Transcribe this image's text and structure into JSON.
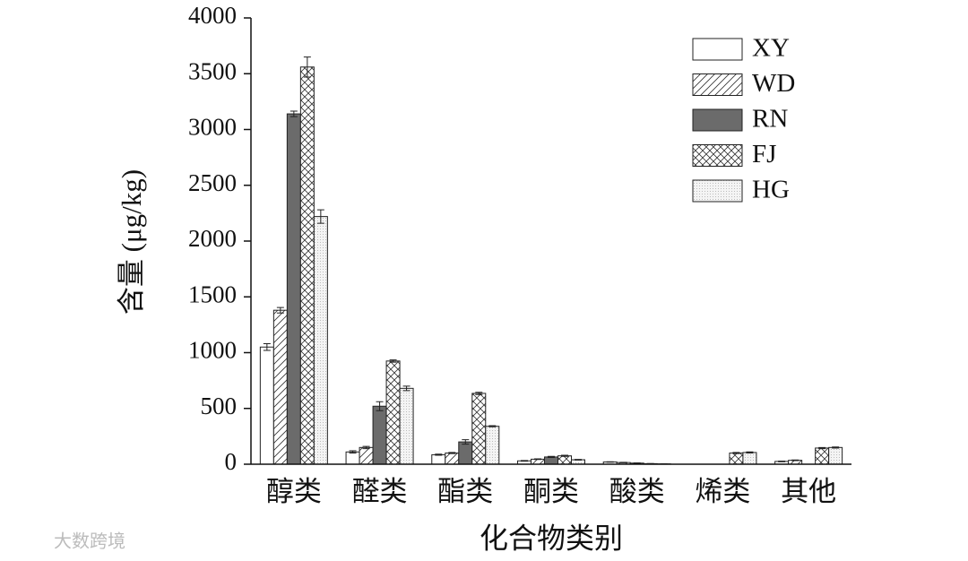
{
  "watermark": "大数跨境",
  "chart_data": {
    "type": "bar",
    "y_label": "含量 (μg/kg)",
    "x_label": "化合物类别",
    "categories": [
      "醇类",
      "醛类",
      "酯类",
      "酮类",
      "酸类",
      "烯类",
      "其他"
    ],
    "series": [
      {
        "name": "XY",
        "color": "#ffffff",
        "pattern": null,
        "values": [
          1050,
          110,
          85,
          30,
          20,
          0,
          25
        ],
        "errors": [
          30,
          10,
          5,
          3,
          2,
          0,
          3
        ]
      },
      {
        "name": "WD",
        "color": "#ffffff",
        "pattern": "hatch",
        "values": [
          1380,
          150,
          100,
          45,
          15,
          0,
          35
        ],
        "errors": [
          25,
          10,
          5,
          3,
          2,
          0,
          3
        ]
      },
      {
        "name": "RN",
        "color": "#6b6b6b",
        "pattern": null,
        "values": [
          3140,
          520,
          200,
          65,
          10,
          0,
          0
        ],
        "errors": [
          25,
          40,
          20,
          5,
          2,
          0,
          0
        ]
      },
      {
        "name": "FJ",
        "color": "#ffffff",
        "pattern": "cross",
        "values": [
          3560,
          925,
          635,
          75,
          5,
          100,
          145
        ],
        "errors": [
          90,
          10,
          10,
          5,
          1,
          5,
          5
        ]
      },
      {
        "name": "HG",
        "color": "#f4f4f4",
        "pattern": "dots",
        "values": [
          2220,
          680,
          340,
          40,
          3,
          105,
          150
        ],
        "errors": [
          60,
          20,
          5,
          3,
          1,
          5,
          5
        ]
      }
    ],
    "ylim": [
      0,
      4000
    ],
    "yticks": [
      0,
      500,
      1000,
      1500,
      2000,
      2500,
      3000,
      3500,
      4000
    ],
    "grid": false,
    "legend": "upper right"
  }
}
